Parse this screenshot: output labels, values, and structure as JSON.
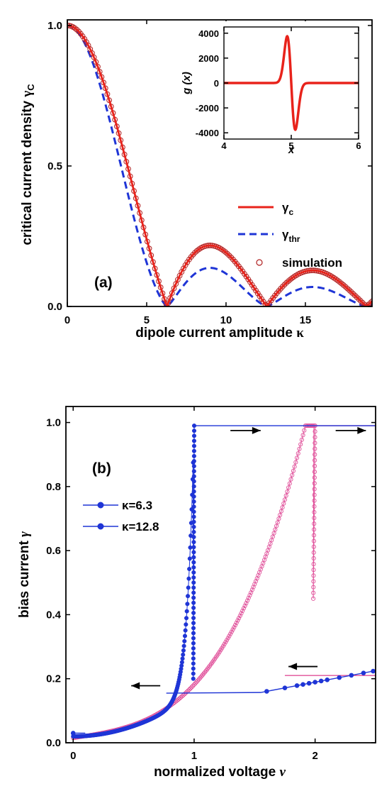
{
  "colors": {
    "red": "#e8231b",
    "blue": "#1f35d6",
    "pink": "#e0509a",
    "sim": "#b02020",
    "frame": "#000000"
  },
  "chart_data": [
    {
      "panel": "(a)",
      "type": "line",
      "xlabel": "dipole current amplitude",
      "xlabel_symbol": "κ",
      "ylabel": "critical current density",
      "ylabel_symbol": "γ",
      "ylabel_sub": "C",
      "xlim": [
        0,
        19.2
      ],
      "ylim": [
        0,
        1.02
      ],
      "xticks": [
        0,
        5,
        10,
        15
      ],
      "xtick_labels": [
        "0",
        "5",
        "10",
        "15"
      ],
      "yticks": [
        0,
        0.5,
        1.0
      ],
      "ytick_labels": [
        "0.0",
        "0.5",
        "1.0"
      ],
      "legend_position": "right-middle",
      "series": [
        {
          "name": "γ",
          "name_sub": "c",
          "style": "solid-red",
          "formula": "|sin(x/2)/(x/2)|"
        },
        {
          "name": "γ",
          "name_sub": "thr",
          "style": "dashed-blue",
          "formula": "|sin(x/2)/(x/2)|^1.3"
        },
        {
          "name": "simulation",
          "style": "open-circles",
          "formula": "|sin(x/2)/(x/2)|",
          "step": 0.12
        }
      ],
      "inset": {
        "type": "line",
        "xlabel": "x",
        "ylabel": "g (x)",
        "xlim": [
          4,
          6
        ],
        "ylim": [
          -4500,
          4500
        ],
        "xticks": [
          4,
          5,
          6
        ],
        "xtick_labels": [
          "4",
          "5",
          "6"
        ],
        "yticks": [
          -4000,
          -2000,
          0,
          2000,
          4000
        ],
        "ytick_labels": [
          "-4000",
          "-2000",
          "0",
          "2000",
          "4000"
        ],
        "peak_position": [
          4.94,
          3750
        ],
        "trough_position": [
          5.06,
          -3750
        ]
      }
    },
    {
      "panel": "(b)",
      "type": "line",
      "xlabel": "normalized voltage",
      "xlabel_symbol": "ν",
      "ylabel": "bias current",
      "ylabel_symbol": "γ",
      "xlim": [
        -0.06,
        2.5
      ],
      "ylim": [
        0,
        1.05
      ],
      "xticks": [
        0,
        1,
        2
      ],
      "xtick_labels": [
        "0",
        "1",
        "2"
      ],
      "yticks": [
        0,
        0.2,
        0.4,
        0.6,
        0.8,
        1.0
      ],
      "ytick_labels": [
        "0.0",
        "0.2",
        "0.4",
        "0.6",
        "0.8",
        "1.0"
      ],
      "legend_position": "left-upper",
      "series": [
        {
          "name": "κ=6.3",
          "style": "blue-filled",
          "switch_up": [
            [
              1.0,
              0.99
            ],
            [
              2.5,
              0.99
            ]
          ],
          "retrap": [
            [
              0.77,
              0.155
            ],
            [
              2.5,
              0.225
            ]
          ]
        },
        {
          "name": "κ=12.8",
          "style": "pink-open",
          "switch_up": [
            [
              2.0,
              0.99
            ],
            [
              2.5,
              0.99
            ]
          ],
          "retrap": [
            [
              1.75,
              0.21
            ],
            [
              2.5,
              0.21
            ]
          ]
        }
      ],
      "arrows": [
        {
          "from": [
            1.3,
            0.975
          ],
          "to": [
            1.55,
            0.975
          ]
        },
        {
          "from": [
            2.17,
            0.975
          ],
          "to": [
            2.42,
            0.975
          ]
        },
        {
          "from": [
            0.72,
            0.178
          ],
          "to": [
            0.48,
            0.178
          ]
        },
        {
          "from": [
            2.02,
            0.238
          ],
          "to": [
            1.78,
            0.238
          ]
        }
      ]
    }
  ]
}
